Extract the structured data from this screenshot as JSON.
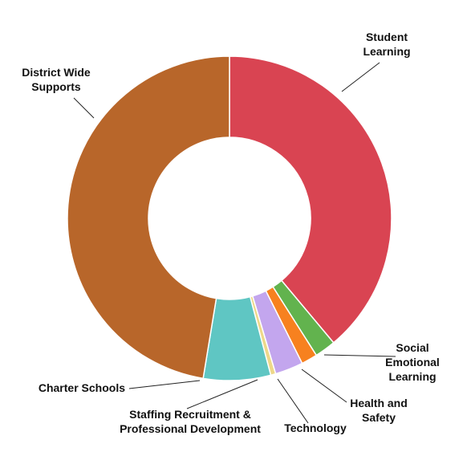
{
  "chart_data": {
    "type": "pie",
    "donut": true,
    "title": "",
    "categories": [
      "Student Learning",
      "Social Emotional Learning",
      "Health and Safety",
      "Technology",
      "Staffing Recruitment & Professional Development",
      "Charter Schools",
      "District Wide Supports"
    ],
    "values": [
      38.9,
      2.1,
      1.6,
      2.8,
      0.5,
      6.7,
      47.4
    ],
    "colors": [
      "#d94452",
      "#62b34e",
      "#f7811f",
      "#c3a6ee",
      "#eed88a",
      "#5fc6c3",
      "#b8662a"
    ],
    "labels": [
      {
        "lines": [
          "Student",
          "Learning"
        ]
      },
      {
        "lines": [
          "Social",
          "Emotional",
          "Learning"
        ]
      },
      {
        "lines": [
          "Health and",
          "Safety"
        ]
      },
      {
        "lines": [
          "Technology"
        ]
      },
      {
        "lines": [
          "Staffing Recruitment &",
          "Professional Development"
        ]
      },
      {
        "lines": [
          "Charter Schools"
        ]
      },
      {
        "lines": [
          "District Wide",
          "Supports"
        ]
      }
    ]
  }
}
